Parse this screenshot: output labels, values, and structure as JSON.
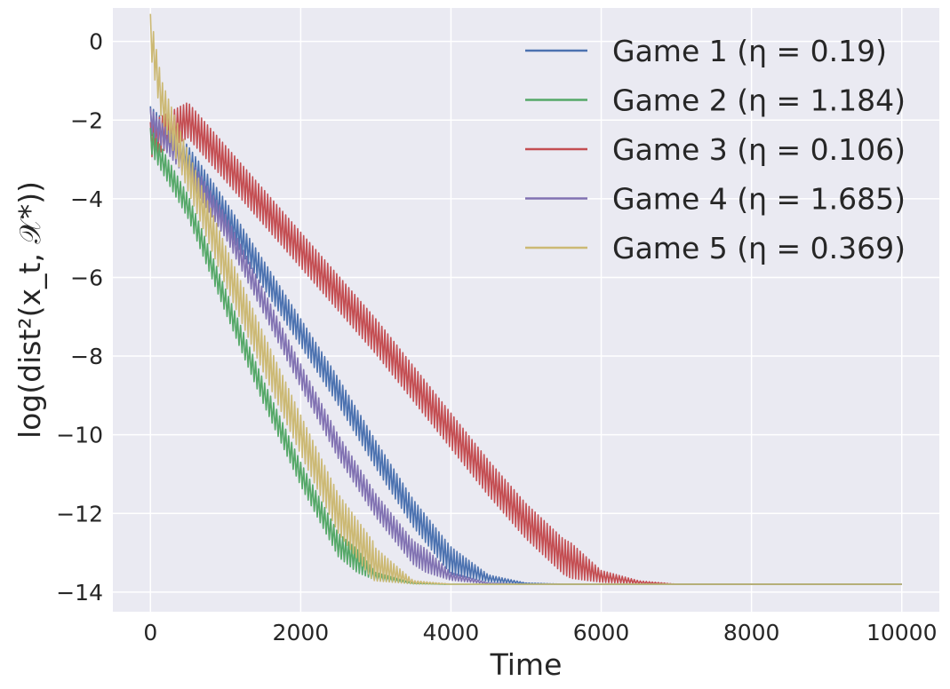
{
  "chart_data": {
    "type": "line",
    "xlabel": "Time",
    "ylabel": "log(dist²(x_t, 𝒳*))",
    "xlim": [
      -500,
      10500
    ],
    "ylim": [
      -14.5,
      0.85
    ],
    "xticks": [
      0,
      2000,
      4000,
      6000,
      8000,
      10000
    ],
    "yticks": [
      0,
      -2,
      -4,
      -6,
      -8,
      -10,
      -12,
      -14
    ],
    "xtick_labels": [
      "0",
      "2000",
      "4000",
      "6000",
      "8000",
      "10000"
    ],
    "ytick_labels": [
      "0",
      "−2",
      "−4",
      "−6",
      "−8",
      "−10",
      "−12",
      "−14"
    ],
    "grid": true,
    "legend_position": "top-right",
    "background": "#eaeaf2",
    "series": [
      {
        "name": "Game 1 (η = 0.19)",
        "color": "#4c72b0",
        "oscillation_amplitude": 0.35,
        "points": [
          [
            0,
            -2.0
          ],
          [
            500,
            -3.0
          ],
          [
            1000,
            -4.4
          ],
          [
            1500,
            -5.9
          ],
          [
            2000,
            -7.4
          ],
          [
            2500,
            -8.9
          ],
          [
            3000,
            -10.5
          ],
          [
            3500,
            -12.0
          ],
          [
            4000,
            -13.2
          ],
          [
            4500,
            -13.65
          ],
          [
            5000,
            -13.78
          ],
          [
            5500,
            -13.8
          ],
          [
            10000,
            -13.8
          ]
        ]
      },
      {
        "name": "Game 2 (η = 1.184)",
        "color": "#55a868",
        "oscillation_amplitude": 0.3,
        "points": [
          [
            0,
            -2.5
          ],
          [
            500,
            -4.2
          ],
          [
            1000,
            -6.6
          ],
          [
            1500,
            -8.9
          ],
          [
            2000,
            -11.0
          ],
          [
            2500,
            -12.8
          ],
          [
            3000,
            -13.6
          ],
          [
            3500,
            -13.78
          ],
          [
            4000,
            -13.8
          ],
          [
            10000,
            -13.8
          ]
        ]
      },
      {
        "name": "Game 3 (η = 0.106)",
        "color": "#c44e52",
        "oscillation_amplitude": 0.45,
        "points": [
          [
            0,
            -2.5
          ],
          [
            500,
            -2.0
          ],
          [
            1000,
            -3.1
          ],
          [
            1500,
            -4.2
          ],
          [
            2000,
            -5.3
          ],
          [
            2500,
            -6.4
          ],
          [
            3000,
            -7.5
          ],
          [
            3500,
            -8.7
          ],
          [
            4000,
            -9.9
          ],
          [
            4500,
            -11.1
          ],
          [
            5000,
            -12.2
          ],
          [
            5500,
            -13.1
          ],
          [
            6000,
            -13.6
          ],
          [
            6500,
            -13.75
          ],
          [
            7000,
            -13.8
          ],
          [
            10000,
            -13.8
          ]
        ]
      },
      {
        "name": "Game 4 (η = 1.685)",
        "color": "#8172b2",
        "oscillation_amplitude": 0.3,
        "points": [
          [
            0,
            -2.0
          ],
          [
            500,
            -3.2
          ],
          [
            1000,
            -4.7
          ],
          [
            1500,
            -6.6
          ],
          [
            2000,
            -8.5
          ],
          [
            2500,
            -10.3
          ],
          [
            3000,
            -11.8
          ],
          [
            3500,
            -13.0
          ],
          [
            4000,
            -13.6
          ],
          [
            4500,
            -13.78
          ],
          [
            5000,
            -13.8
          ],
          [
            10000,
            -13.8
          ]
        ]
      },
      {
        "name": "Game 5 (η = 0.369)",
        "color": "#ccb974",
        "oscillation_amplitude": 0.5,
        "points": [
          [
            0,
            0.2
          ],
          [
            150,
            -1.5
          ],
          [
            500,
            -3.3
          ],
          [
            1000,
            -5.7
          ],
          [
            1500,
            -7.9
          ],
          [
            2000,
            -10.0
          ],
          [
            2500,
            -12.0
          ],
          [
            3000,
            -13.3
          ],
          [
            3500,
            -13.75
          ],
          [
            4000,
            -13.8
          ],
          [
            10000,
            -13.8
          ]
        ]
      }
    ]
  }
}
